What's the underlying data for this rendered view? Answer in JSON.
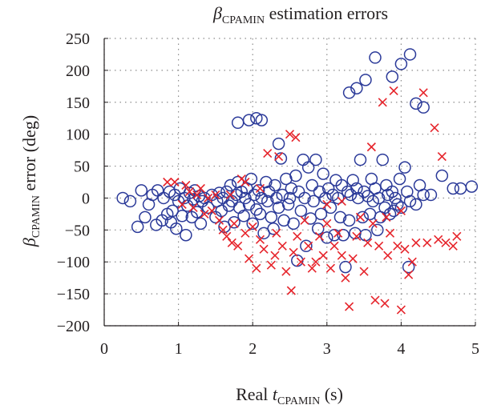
{
  "chart_data": {
    "type": "scatter",
    "title": {
      "symbol": "β",
      "subscript": "CPAMIN",
      "rest": " estimation errors"
    },
    "xlabel": {
      "prefix": "Real ",
      "symbol": "t",
      "subscript": "CPAMIN",
      "suffix": " (s)"
    },
    "ylabel": {
      "symbol": "β",
      "subscript": "CPAMIN",
      "suffix": " error (deg)"
    },
    "xlim": [
      0,
      5
    ],
    "ylim": [
      -200,
      250
    ],
    "xticks": [
      "0",
      "1",
      "2",
      "3",
      "4",
      "5"
    ],
    "yticks": [
      "250",
      "200",
      "150",
      "100",
      "50",
      "0",
      "−50",
      "−100",
      "−150",
      "−200"
    ],
    "grid": "dotted",
    "colors": {
      "circle": "#2b3a99",
      "cross": "#e6242b",
      "axis": "#231f20",
      "grid": "#8c8c8c"
    },
    "series": [
      {
        "marker": "circle",
        "points": [
          [
            0.25,
            0
          ],
          [
            0.35,
            -5
          ],
          [
            0.45,
            -45
          ],
          [
            0.5,
            12
          ],
          [
            0.55,
            -30
          ],
          [
            0.6,
            -10
          ],
          [
            0.65,
            5
          ],
          [
            0.7,
            -42
          ],
          [
            0.72,
            12
          ],
          [
            0.78,
            -35
          ],
          [
            0.8,
            0
          ],
          [
            0.85,
            -25
          ],
          [
            0.88,
            10
          ],
          [
            0.9,
            -38
          ],
          [
            0.92,
            -20
          ],
          [
            0.95,
            5
          ],
          [
            0.97,
            -48
          ],
          [
            1.0,
            -5
          ],
          [
            1.02,
            15
          ],
          [
            1.05,
            -28
          ],
          [
            1.08,
            0
          ],
          [
            1.1,
            -58
          ],
          [
            1.12,
            -12
          ],
          [
            1.15,
            8
          ],
          [
            1.18,
            -30
          ],
          [
            1.2,
            -2
          ],
          [
            1.22,
            12
          ],
          [
            1.25,
            -22
          ],
          [
            1.28,
            3
          ],
          [
            1.3,
            -40
          ],
          [
            1.32,
            -5
          ],
          [
            1.35,
            0
          ],
          [
            1.4,
            -15
          ],
          [
            1.45,
            5
          ],
          [
            1.5,
            -30
          ],
          [
            1.52,
            -5
          ],
          [
            1.55,
            8
          ],
          [
            1.58,
            -20
          ],
          [
            1.6,
            0
          ],
          [
            1.62,
            -45
          ],
          [
            1.65,
            10
          ],
          [
            1.68,
            -12
          ],
          [
            1.7,
            20
          ],
          [
            1.72,
            -5
          ],
          [
            1.75,
            -38
          ],
          [
            1.78,
            5
          ],
          [
            1.8,
            25
          ],
          [
            1.82,
            -15
          ],
          [
            1.85,
            10
          ],
          [
            1.88,
            -28
          ],
          [
            1.9,
            0
          ],
          [
            1.92,
            15
          ],
          [
            1.95,
            -10
          ],
          [
            1.98,
            30
          ],
          [
            2.0,
            -40
          ],
          [
            2.02,
            5
          ],
          [
            2.05,
            -18
          ],
          [
            2.08,
            12
          ],
          [
            2.1,
            -25
          ],
          [
            2.12,
            0
          ],
          [
            2.15,
            -55
          ],
          [
            2.18,
            25
          ],
          [
            2.2,
            -5
          ],
          [
            2.22,
            10
          ],
          [
            2.25,
            -30
          ],
          [
            2.28,
            -48
          ],
          [
            2.3,
            20
          ],
          [
            2.32,
            0
          ],
          [
            2.35,
            -15
          ],
          [
            2.38,
            62
          ],
          [
            2.4,
            5
          ],
          [
            2.42,
            -35
          ],
          [
            2.45,
            30
          ],
          [
            2.48,
            -10
          ],
          [
            2.5,
            0
          ],
          [
            2.52,
            15
          ],
          [
            2.55,
            -40
          ],
          [
            2.58,
            35
          ],
          [
            2.6,
            -98
          ],
          [
            2.62,
            10
          ],
          [
            2.65,
            -20
          ],
          [
            2.68,
            60
          ],
          [
            2.7,
            0
          ],
          [
            2.72,
            -75
          ],
          [
            2.75,
            48
          ],
          [
            2.78,
            -32
          ],
          [
            2.8,
            20
          ],
          [
            2.82,
            -5
          ],
          [
            2.85,
            60
          ],
          [
            2.88,
            -48
          ],
          [
            2.9,
            10
          ],
          [
            2.92,
            -25
          ],
          [
            2.95,
            38
          ],
          [
            2.98,
            0
          ],
          [
            3.0,
            -62
          ],
          [
            3.02,
            15
          ],
          [
            3.05,
            -15
          ],
          [
            3.08,
            5
          ],
          [
            3.1,
            -58
          ],
          [
            3.12,
            28
          ],
          [
            3.15,
            0
          ],
          [
            3.18,
            -30
          ],
          [
            3.2,
            20
          ],
          [
            3.22,
            -58
          ],
          [
            3.25,
            -108
          ],
          [
            3.28,
            10
          ],
          [
            3.3,
            -35
          ],
          [
            3.32,
            5
          ],
          [
            3.35,
            28
          ],
          [
            3.38,
            -55
          ],
          [
            3.4,
            15
          ],
          [
            3.42,
            0
          ],
          [
            3.45,
            60
          ],
          [
            3.48,
            -30
          ],
          [
            3.5,
            10
          ],
          [
            3.52,
            -58
          ],
          [
            3.55,
            3
          ],
          [
            3.58,
            -25
          ],
          [
            3.6,
            30
          ],
          [
            3.62,
            -5
          ],
          [
            3.65,
            15
          ],
          [
            3.68,
            -50
          ],
          [
            3.7,
            0
          ],
          [
            3.72,
            -30
          ],
          [
            3.75,
            60
          ],
          [
            3.78,
            -15
          ],
          [
            3.8,
            20
          ],
          [
            3.82,
            5
          ],
          [
            3.85,
            -25
          ],
          [
            3.88,
            10
          ],
          [
            3.9,
            -20
          ],
          [
            3.92,
            0
          ],
          [
            3.95,
            -10
          ],
          [
            3.98,
            30
          ],
          [
            4.0,
            -15
          ],
          [
            4.05,
            48
          ],
          [
            4.08,
            10
          ],
          [
            4.1,
            -108
          ],
          [
            4.12,
            -5
          ],
          [
            4.2,
            -10
          ],
          [
            4.25,
            20
          ],
          [
            4.3,
            5
          ],
          [
            4.4,
            5
          ],
          [
            4.55,
            35
          ],
          [
            4.7,
            15
          ],
          [
            4.8,
            15
          ],
          [
            4.95,
            18
          ],
          [
            1.8,
            118
          ],
          [
            1.95,
            122
          ],
          [
            2.05,
            125
          ],
          [
            2.12,
            122
          ],
          [
            2.35,
            85
          ],
          [
            3.3,
            165
          ],
          [
            3.4,
            172
          ],
          [
            3.52,
            185
          ],
          [
            3.65,
            220
          ],
          [
            3.88,
            190
          ],
          [
            4.0,
            210
          ],
          [
            4.12,
            225
          ],
          [
            4.2,
            148
          ],
          [
            4.3,
            142
          ]
        ]
      },
      {
        "marker": "cross",
        "points": [
          [
            0.85,
            25
          ],
          [
            0.95,
            25
          ],
          [
            1.05,
            -10
          ],
          [
            1.1,
            20
          ],
          [
            1.15,
            10
          ],
          [
            1.2,
            -15
          ],
          [
            1.25,
            5
          ],
          [
            1.3,
            15
          ],
          [
            1.35,
            -25
          ],
          [
            1.4,
            0
          ],
          [
            1.45,
            -20
          ],
          [
            1.5,
            5
          ],
          [
            1.55,
            -35
          ],
          [
            1.6,
            -50
          ],
          [
            1.65,
            -60
          ],
          [
            1.7,
            5
          ],
          [
            1.72,
            -70
          ],
          [
            1.75,
            -40
          ],
          [
            1.8,
            -75
          ],
          [
            1.85,
            30
          ],
          [
            1.9,
            -55
          ],
          [
            1.95,
            -95
          ],
          [
            2.0,
            -45
          ],
          [
            2.05,
            -110
          ],
          [
            2.1,
            -65
          ],
          [
            2.15,
            -80
          ],
          [
            2.2,
            70
          ],
          [
            2.25,
            -105
          ],
          [
            2.3,
            -90
          ],
          [
            2.32,
            -55
          ],
          [
            2.35,
            65
          ],
          [
            2.4,
            -75
          ],
          [
            2.45,
            -115
          ],
          [
            2.5,
            100
          ],
          [
            2.52,
            -145
          ],
          [
            2.55,
            -85
          ],
          [
            2.58,
            95
          ],
          [
            2.6,
            -60
          ],
          [
            2.65,
            -100
          ],
          [
            2.7,
            -35
          ],
          [
            2.75,
            -75
          ],
          [
            2.8,
            -110
          ],
          [
            2.85,
            -100
          ],
          [
            2.9,
            -60
          ],
          [
            2.95,
            -90
          ],
          [
            3.0,
            -40
          ],
          [
            3.05,
            -110
          ],
          [
            3.1,
            -75
          ],
          [
            3.15,
            -55
          ],
          [
            3.2,
            -90
          ],
          [
            3.25,
            -125
          ],
          [
            3.3,
            -170
          ],
          [
            3.35,
            -95
          ],
          [
            3.4,
            -60
          ],
          [
            3.45,
            -30
          ],
          [
            3.5,
            -115
          ],
          [
            3.55,
            -70
          ],
          [
            3.6,
            80
          ],
          [
            3.62,
            -40
          ],
          [
            3.65,
            -160
          ],
          [
            3.7,
            -75
          ],
          [
            3.75,
            150
          ],
          [
            3.78,
            -165
          ],
          [
            3.82,
            -90
          ],
          [
            3.85,
            -55
          ],
          [
            3.9,
            168
          ],
          [
            3.95,
            -75
          ],
          [
            4.0,
            -175
          ],
          [
            4.05,
            -80
          ],
          [
            4.1,
            -120
          ],
          [
            4.15,
            -100
          ],
          [
            4.2,
            -70
          ],
          [
            4.3,
            165
          ],
          [
            4.35,
            -70
          ],
          [
            4.45,
            110
          ],
          [
            4.5,
            -65
          ],
          [
            4.55,
            65
          ],
          [
            4.6,
            -70
          ],
          [
            4.7,
            -75
          ],
          [
            4.75,
            -60
          ],
          [
            3.0,
            -10
          ],
          [
            3.2,
            -5
          ],
          [
            3.8,
            -30
          ],
          [
            4.0,
            -20
          ],
          [
            1.9,
            25
          ],
          [
            2.1,
            15
          ]
        ]
      }
    ]
  }
}
